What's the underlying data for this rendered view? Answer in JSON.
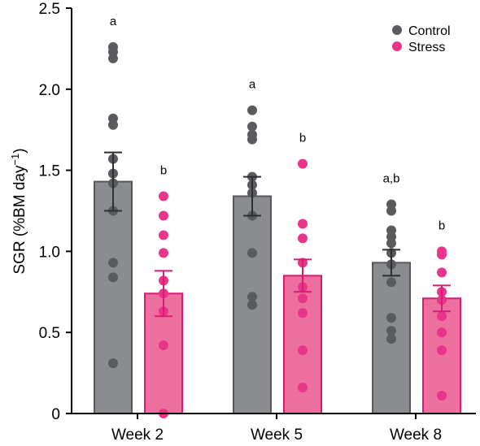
{
  "chart_data": {
    "type": "bar",
    "ylabel": "SGR (%BM day",
    "ylabel_sup": "−1",
    "ylabel_close": ")",
    "ylim": [
      0,
      2.5
    ],
    "yticks": [
      {
        "value": 0,
        "label": "0"
      },
      {
        "value": 0.5,
        "label": "0.5"
      },
      {
        "value": 1.0,
        "label": "1.0"
      },
      {
        "value": 1.5,
        "label": "1.5"
      },
      {
        "value": 2.0,
        "label": "2.0"
      },
      {
        "value": 2.5,
        "label": "2.5"
      }
    ],
    "grid": false,
    "legend_position": "top-right",
    "categories": [
      "Week 2",
      "Week 5",
      "Week 8"
    ],
    "series": [
      {
        "name": "Control",
        "bar_color": "#8a8c8f",
        "edge_color": "#555759",
        "point_color": "#595b5e",
        "values": [
          1.43,
          1.34,
          0.93
        ],
        "error": [
          0.18,
          0.12,
          0.08
        ],
        "letters": [
          "a",
          "a",
          "a,b"
        ],
        "points": [
          [
            2.26,
            2.23,
            2.19,
            1.82,
            1.78,
            1.57,
            1.48,
            1.42,
            1.25,
            0.93,
            0.84,
            0.31
          ],
          [
            1.87,
            1.77,
            1.72,
            1.69,
            1.46,
            1.41,
            1.36,
            1.22,
            0.99,
            0.72,
            0.67
          ],
          [
            1.29,
            1.25,
            1.13,
            1.09,
            1.05,
            0.99,
            0.92,
            0.81,
            0.59,
            0.51,
            0.46
          ]
        ]
      },
      {
        "name": "Stress",
        "bar_color": "#ec6f9d",
        "edge_color": "#d81b74",
        "point_color": "#e8358a",
        "values": [
          0.74,
          0.85,
          0.71
        ],
        "error": [
          0.14,
          0.1,
          0.08
        ],
        "letters": [
          "b",
          "b",
          "b"
        ],
        "points": [
          [
            1.34,
            1.22,
            1.1,
            0.99,
            0.82,
            0.74,
            0.63,
            0.42,
            0.0
          ],
          [
            1.54,
            1.17,
            1.08,
            0.93,
            0.78,
            0.71,
            0.62,
            0.39,
            0.16
          ],
          [
            1.0,
            0.98,
            0.87,
            0.75,
            0.7,
            0.6,
            0.5,
            0.39,
            0.11
          ]
        ]
      }
    ]
  }
}
